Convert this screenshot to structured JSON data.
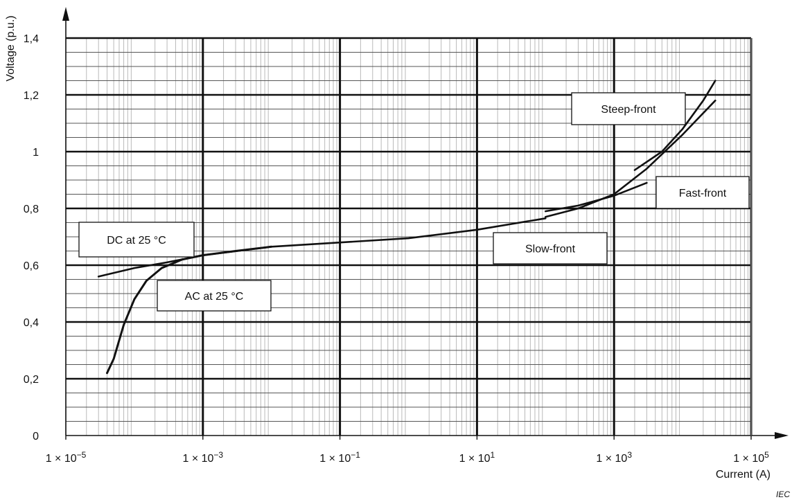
{
  "chart_data": {
    "type": "line",
    "title": "",
    "xlabel": "Current  (A)",
    "ylabel": "Voltage (p.u.)",
    "x_scale": "log",
    "xlim": [
      1e-05,
      100000.0
    ],
    "ylim": [
      0,
      1.4
    ],
    "grid": true,
    "legend": "none",
    "x_ticks": [
      {
        "value": 1e-05,
        "label": "1 × 10",
        "exp": "−5"
      },
      {
        "value": 0.001,
        "label": "1 × 10",
        "exp": "−3"
      },
      {
        "value": 0.1,
        "label": "1 × 10",
        "exp": "−1"
      },
      {
        "value": 10.0,
        "label": "1 × 10",
        "exp": "1"
      },
      {
        "value": 1000.0,
        "label": "1 × 10",
        "exp": "3"
      },
      {
        "value": 100000.0,
        "label": "1 × 10",
        "exp": "5"
      }
    ],
    "y_ticks": [
      {
        "value": 0,
        "label": "0"
      },
      {
        "value": 0.2,
        "label": "0,2"
      },
      {
        "value": 0.4,
        "label": "0,4"
      },
      {
        "value": 0.6,
        "label": "0,6"
      },
      {
        "value": 0.8,
        "label": "0,8"
      },
      {
        "value": 1.0,
        "label": "1"
      },
      {
        "value": 1.2,
        "label": "1,2"
      },
      {
        "value": 1.4,
        "label": "1,4"
      }
    ],
    "series": [
      {
        "x": [
          3e-05,
          0.0001,
          0.0003,
          0.001,
          0.01,
          0.1,
          1,
          10,
          100
        ],
        "y": [
          0.56,
          0.59,
          0.61,
          0.635,
          0.665,
          0.68,
          0.695,
          0.725,
          0.765
        ]
      },
      {
        "x": [
          4e-05,
          5e-05,
          7e-05,
          0.0001,
          0.00015,
          0.00025,
          0.0005,
          0.001,
          0.003,
          0.01
        ],
        "y": [
          0.22,
          0.27,
          0.39,
          0.48,
          0.545,
          0.59,
          0.62,
          0.635,
          0.65,
          0.665
        ],
        "stroke": 3
      },
      {
        "x": [
          100,
          300,
          1000,
          3000
        ],
        "y": [
          0.79,
          0.81,
          0.845,
          0.89
        ]
      },
      {
        "x": [
          100,
          300,
          1000,
          3000,
          10000.0,
          30000.0
        ],
        "y": [
          0.77,
          0.8,
          0.85,
          0.94,
          1.06,
          1.18
        ]
      },
      {
        "x": [
          2000,
          5000,
          10000.0,
          20000.0,
          30000.0
        ],
        "y": [
          0.935,
          1.0,
          1.08,
          1.18,
          1.25
        ]
      }
    ],
    "annotations": [
      {
        "text": "DC at 25 °C"
      },
      {
        "text": "AC at 25 °C"
      },
      {
        "text": "Slow-front"
      },
      {
        "text": "Fast-front"
      },
      {
        "text": "Steep-front"
      }
    ],
    "credit": "IEC"
  }
}
